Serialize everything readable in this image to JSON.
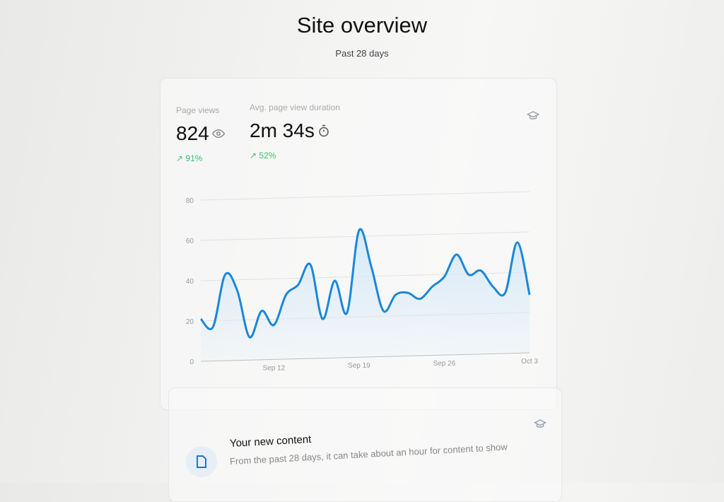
{
  "header": {
    "title": "Site overview",
    "subtitle": "Past 28 days"
  },
  "metrics": [
    {
      "label": "Page views",
      "value": "824",
      "icon": "eye-icon",
      "change": "↗ 91%"
    },
    {
      "label": "Avg. page view duration",
      "value": "2m 34s",
      "icon": "stopwatch-icon",
      "change": "↗ 52%"
    }
  ],
  "colors": {
    "line": "#1a87d9",
    "positive": "#3cc06a",
    "fill": "#d6e9f7"
  },
  "content_card": {
    "title": "Your new content",
    "description": "From the past 28 days, it can take about an hour for content to show",
    "icon": "document-icon"
  },
  "chart_data": {
    "type": "area",
    "x": [
      "Sep 6",
      "Sep 7",
      "Sep 8",
      "Sep 9",
      "Sep 10",
      "Sep 11",
      "Sep 12",
      "Sep 13",
      "Sep 14",
      "Sep 15",
      "Sep 16",
      "Sep 17",
      "Sep 18",
      "Sep 19",
      "Sep 20",
      "Sep 21",
      "Sep 22",
      "Sep 23",
      "Sep 24",
      "Sep 25",
      "Sep 26",
      "Sep 27",
      "Sep 28",
      "Sep 29",
      "Sep 30",
      "Oct 1",
      "Oct 2",
      "Oct 3"
    ],
    "values": [
      21,
      17,
      43,
      35,
      12,
      25,
      18,
      33,
      38,
      48,
      21,
      40,
      24,
      65,
      47,
      25,
      33,
      34,
      31,
      37,
      42,
      53,
      43,
      45,
      37,
      34,
      59,
      33
    ],
    "xticks": [
      "Sep 12",
      "Sep 19",
      "Sep 26",
      "Oct 3"
    ],
    "yticks": [
      "0",
      "20",
      "40",
      "60",
      "80"
    ],
    "ylim": [
      0,
      80
    ],
    "grid": true
  }
}
